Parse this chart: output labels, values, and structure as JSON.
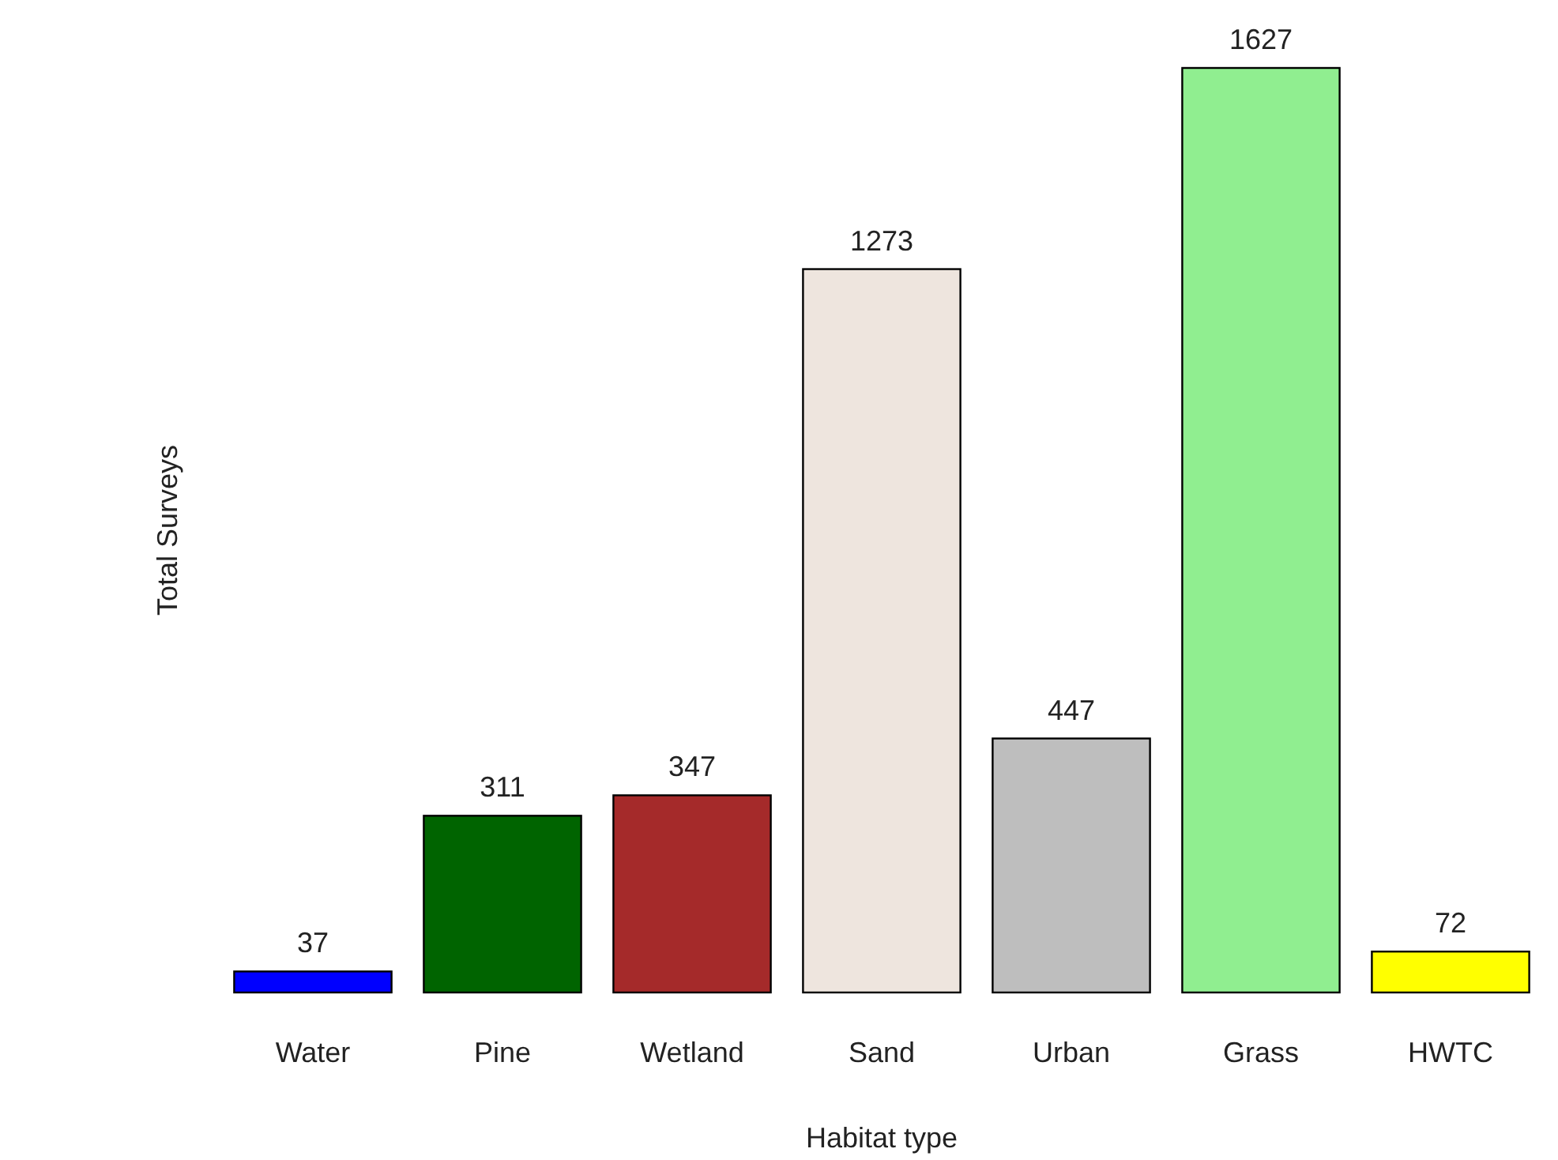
{
  "chart_data": {
    "type": "bar",
    "xlabel": "Habitat type",
    "ylabel": "Total Surveys",
    "categories": [
      "Water",
      "Pine",
      "Wetland",
      "Sand",
      "Urban",
      "Grass",
      "HWTC"
    ],
    "values": [
      37,
      311,
      347,
      1273,
      447,
      1627,
      72
    ],
    "colors": [
      "#0000ff",
      "#006400",
      "#a52a2a",
      "#eee5de",
      "#bebebe",
      "#90ee90",
      "#ffff00"
    ],
    "data_labels": true
  }
}
